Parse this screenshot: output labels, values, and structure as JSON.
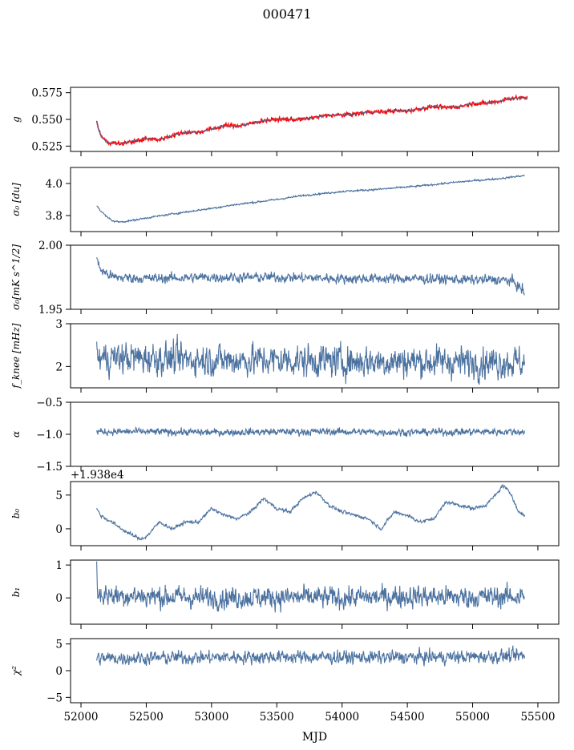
{
  "figure": {
    "title": "000471",
    "xlabel": "MJD"
  },
  "colors": {
    "series": "#4c72a0",
    "model": "#ff0000",
    "axes": "#000000"
  },
  "chart_data": [
    {
      "type": "line",
      "id": "g",
      "ylabel": "g",
      "ylim": [
        0.52,
        0.58
      ],
      "yticks": [
        "0.525",
        "0.550",
        "0.575"
      ],
      "ytick_values": [
        0.525,
        0.55,
        0.575
      ],
      "xlim": [
        51920,
        55660
      ],
      "series": [
        {
          "key": "g_red",
          "color": "#ff0000",
          "noise": 0.0012,
          "x": [
            52120,
            52130,
            52150,
            52200,
            52300,
            52400,
            52500,
            52600,
            52700,
            52800,
            52900,
            53000,
            53100,
            53200,
            53300,
            53400,
            53500,
            53600,
            53700,
            53800,
            53900,
            54000,
            54100,
            54200,
            54300,
            54400,
            54500,
            54600,
            54700,
            54800,
            54900,
            55000,
            55100,
            55200,
            55300,
            55400,
            55420
          ],
          "y": [
            0.549,
            0.542,
            0.535,
            0.528,
            0.527,
            0.53,
            0.532,
            0.531,
            0.535,
            0.538,
            0.538,
            0.541,
            0.544,
            0.544,
            0.546,
            0.549,
            0.55,
            0.55,
            0.55,
            0.552,
            0.554,
            0.554,
            0.555,
            0.557,
            0.557,
            0.558,
            0.558,
            0.56,
            0.562,
            0.561,
            0.562,
            0.565,
            0.565,
            0.567,
            0.57,
            0.57,
            0.57
          ]
        },
        {
          "key": "g_blue",
          "color": "#4c72a0",
          "noise": 0.0,
          "x": [
            52120,
            52130,
            52150,
            52200,
            52300,
            52400,
            52500,
            52600,
            52700,
            52800,
            52900,
            53000,
            53100,
            53200,
            53300,
            53400,
            53500,
            53600,
            53700,
            53800,
            53900,
            54000,
            54100,
            54200,
            54300,
            54400,
            54500,
            54600,
            54700,
            54800,
            54900,
            55000,
            55100,
            55200,
            55300,
            55400,
            55420
          ],
          "y": [
            0.548,
            0.542,
            0.535,
            0.528,
            0.527,
            0.53,
            0.532,
            0.531,
            0.535,
            0.538,
            0.538,
            0.541,
            0.544,
            0.544,
            0.546,
            0.549,
            0.55,
            0.55,
            0.55,
            0.552,
            0.554,
            0.554,
            0.555,
            0.557,
            0.557,
            0.558,
            0.558,
            0.56,
            0.562,
            0.561,
            0.562,
            0.565,
            0.565,
            0.567,
            0.57,
            0.57,
            0.57
          ]
        }
      ]
    },
    {
      "type": "line",
      "id": "sigma0_du",
      "ylabel": "σ₀ [du]",
      "ylim": [
        3.7,
        4.1
      ],
      "yticks": [
        "3.8",
        "4.0"
      ],
      "ytick_values": [
        3.8,
        4.0
      ],
      "xlim": [
        51920,
        55660
      ],
      "series": [
        {
          "key": "s0",
          "color": "#4c72a0",
          "noise": 0.004,
          "x": [
            52120,
            52150,
            52200,
            52250,
            52300,
            52400,
            52500,
            52700,
            53000,
            53200,
            53500,
            53700,
            54000,
            54300,
            54600,
            54900,
            55200,
            55400
          ],
          "y": [
            3.865,
            3.83,
            3.79,
            3.765,
            3.76,
            3.77,
            3.785,
            3.81,
            3.845,
            3.87,
            3.9,
            3.925,
            3.95,
            3.965,
            3.985,
            4.01,
            4.03,
            4.05
          ]
        }
      ]
    },
    {
      "type": "line",
      "id": "sigma0_mk",
      "ylabel": "σ₀[mK s^1/2]",
      "ylim": [
        1.95,
        2.0
      ],
      "yticks": [
        "1.95",
        "2.00"
      ],
      "ytick_values": [
        1.95,
        2.0
      ],
      "xlim": [
        51920,
        55660
      ],
      "series": [
        {
          "key": "s0mk",
          "color": "#4c72a0",
          "noise": 0.0028,
          "x": [
            52120,
            52130,
            52160,
            52250,
            52500,
            53000,
            53500,
            54000,
            54500,
            55000,
            55200,
            55300,
            55350,
            55400
          ],
          "y": [
            1.992,
            1.985,
            1.98,
            1.975,
            1.974,
            1.975,
            1.975,
            1.974,
            1.974,
            1.973,
            1.973,
            1.972,
            1.968,
            1.963
          ]
        }
      ]
    },
    {
      "type": "line",
      "id": "fknee",
      "ylabel": "f_knee [mHz]",
      "ylim": [
        1.5,
        3.0
      ],
      "yticks": [
        "2",
        "3"
      ],
      "ytick_values": [
        2,
        3
      ],
      "xlim": [
        51920,
        55660
      ],
      "series": [
        {
          "key": "fk",
          "color": "#4c72a0",
          "noise": 0.27,
          "x": [
            52120,
            52500,
            53000,
            53500,
            54000,
            54500,
            55000,
            55400
          ],
          "y": [
            2.2,
            2.2,
            2.15,
            2.15,
            2.12,
            2.12,
            2.1,
            2.1
          ]
        }
      ]
    },
    {
      "type": "line",
      "id": "alpha",
      "ylabel": "α",
      "ylim": [
        -1.5,
        -0.5
      ],
      "yticks": [
        "−1.5",
        "−1.0",
        "−0.5"
      ],
      "ytick_values": [
        -1.5,
        -1.0,
        -0.5
      ],
      "xlim": [
        51920,
        55660
      ],
      "series": [
        {
          "key": "al",
          "color": "#4c72a0",
          "noise": 0.04,
          "x": [
            52120,
            52500,
            53000,
            53500,
            54000,
            54500,
            55000,
            55400
          ],
          "y": [
            -0.96,
            -0.96,
            -0.97,
            -0.96,
            -0.96,
            -0.97,
            -0.96,
            -0.96
          ]
        }
      ]
    },
    {
      "type": "line",
      "id": "b0",
      "ylabel": "b₀",
      "offset_label": "+1.938e4",
      "ylim": [
        -2.5,
        7.0
      ],
      "yticks": [
        "0",
        "5"
      ],
      "ytick_values": [
        0,
        5
      ],
      "xlim": [
        51920,
        55660
      ],
      "series": [
        {
          "key": "b0",
          "color": "#4c72a0",
          "noise": 0.18,
          "x": [
            52120,
            52150,
            52250,
            52350,
            52450,
            52500,
            52600,
            52700,
            52800,
            52900,
            53000,
            53100,
            53200,
            53300,
            53400,
            53500,
            53600,
            53700,
            53800,
            53900,
            54000,
            54100,
            54200,
            54300,
            54400,
            54500,
            54600,
            54700,
            54800,
            54900,
            55000,
            55100,
            55200,
            55230,
            55300,
            55350,
            55400
          ],
          "y": [
            3.0,
            2.0,
            0.8,
            -0.5,
            -1.5,
            -1.2,
            1.0,
            0.0,
            1.0,
            1.0,
            3.0,
            2.0,
            1.5,
            2.5,
            4.5,
            3.0,
            2.5,
            4.5,
            5.5,
            3.5,
            2.5,
            2.0,
            1.5,
            0.0,
            2.5,
            2.0,
            1.0,
            1.5,
            4.0,
            3.5,
            3.0,
            3.5,
            5.5,
            6.5,
            5.0,
            2.5,
            2.0
          ]
        }
      ]
    },
    {
      "type": "line",
      "id": "b1",
      "ylabel": "b₁",
      "ylim": [
        -0.8,
        1.15
      ],
      "yticks": [
        "0",
        "1"
      ],
      "ytick_values": [
        0,
        1
      ],
      "xlim": [
        51920,
        55660
      ],
      "series": [
        {
          "key": "b1",
          "color": "#4c72a0",
          "noise": 0.24,
          "x": [
            52120,
            52125,
            52140,
            52500,
            53000,
            53500,
            54000,
            54500,
            55000,
            55400
          ],
          "y": [
            1.05,
            0.2,
            0.1,
            0.05,
            0.0,
            0.02,
            0.0,
            0.05,
            0.02,
            0.05
          ]
        }
      ]
    },
    {
      "type": "line",
      "id": "chi2",
      "ylabel": "χ²",
      "ylim": [
        -6.0,
        6.0
      ],
      "yticks": [
        "−5",
        "0",
        "5"
      ],
      "ytick_values": [
        -5,
        0,
        5
      ],
      "xlim": [
        51920,
        55660
      ],
      "series": [
        {
          "key": "chi",
          "color": "#4c72a0",
          "noise": 0.9,
          "x": [
            52120,
            52500,
            53000,
            53500,
            54000,
            54500,
            55000,
            55400
          ],
          "y": [
            2.3,
            2.4,
            2.5,
            2.6,
            2.5,
            2.5,
            2.6,
            2.8
          ]
        }
      ]
    }
  ],
  "xaxis": {
    "ticks": [
      "52000",
      "52500",
      "53000",
      "53500",
      "54000",
      "54500",
      "55000",
      "55500"
    ],
    "tick_values": [
      52000,
      52500,
      53000,
      53500,
      54000,
      54500,
      55000,
      55500
    ]
  }
}
